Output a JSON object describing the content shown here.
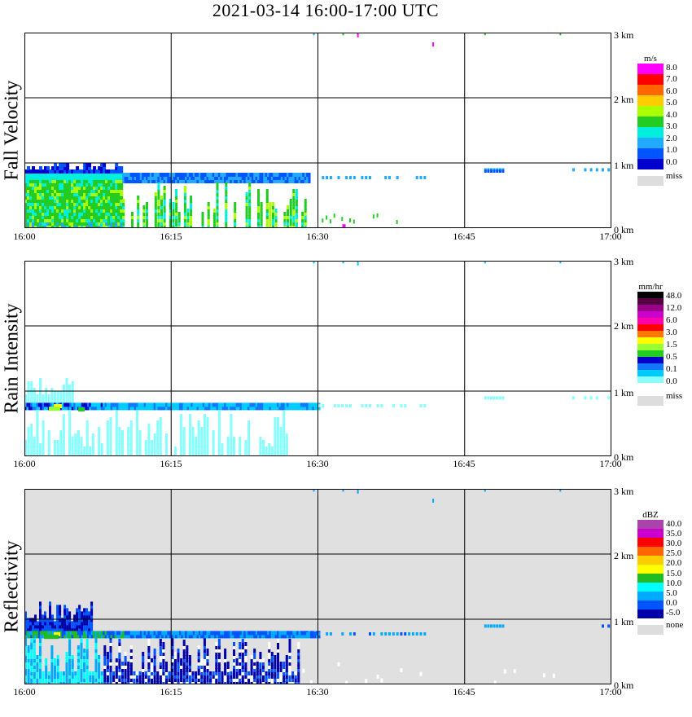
{
  "title": "2021-03-14   16:00-17:00 UTC",
  "x_ticks": [
    "16:00",
    "16:15",
    "16:30",
    "16:45",
    "17:00"
  ],
  "height_ticks": [
    "0 km",
    "1 km",
    "2 km",
    "3 km"
  ],
  "panels": [
    {
      "label": "Fall Velocity",
      "unit": "m/s",
      "missing_label": "miss",
      "background": "#ffffff",
      "legend_ticks": [
        "8.0",
        "7.0",
        "6.0",
        "5.0",
        "4.0",
        "3.0",
        "2.0",
        "1.0",
        "0.0"
      ],
      "legend_colors": [
        "#ff00ff",
        "#ff0000",
        "#ff6600",
        "#ffcc00",
        "#aaff00",
        "#22cc22",
        "#00eedd",
        "#22aaff",
        "#0055ff",
        "#0000cc"
      ]
    },
    {
      "label": "Rain Intensity",
      "unit": "mm/hr",
      "missing_label": "miss",
      "background": "#ffffff",
      "legend_ticks": [
        "48.0",
        "12.0",
        "6.0",
        "3.0",
        "1.5",
        "0.5",
        "0.1",
        "0.0"
      ],
      "legend_colors": [
        "#000000",
        "#550044",
        "#990088",
        "#cc00cc",
        "#ff00aa",
        "#ff0000",
        "#ff7700",
        "#ffff00",
        "#99ff33",
        "#22cc22",
        "#0000cc",
        "#1177ff",
        "#00ccff",
        "#88ffff",
        "#ffffff"
      ]
    },
    {
      "label": "Reflectivity",
      "unit": "dBZ",
      "missing_label": "none",
      "background": "#e0e0e0",
      "legend_ticks": [
        "40.0",
        "35.0",
        "30.0",
        "25.0",
        "20.0",
        "15.0",
        "10.0",
        "5.0",
        "0.0",
        "-5.0"
      ],
      "legend_colors": [
        "#aa44aa",
        "#cc00cc",
        "#ff0000",
        "#ff6600",
        "#ffcc00",
        "#ffff00",
        "#22bb22",
        "#00ffff",
        "#00aaff",
        "#0055ff",
        "#0000aa"
      ]
    }
  ],
  "chart_data": [
    {
      "type": "heatmap",
      "title": "Fall Velocity",
      "unit": "m/s",
      "xlim": [
        "16:00",
        "17:00"
      ],
      "ylim_km": [
        0,
        3.0
      ],
      "grid": true,
      "features": [
        {
          "desc": "precip layer",
          "x": [
            "16:00",
            "16:10"
          ],
          "y_km": [
            0.0,
            1.0
          ],
          "value_range": [
            1.0,
            4.5
          ]
        },
        {
          "desc": "melting layer band",
          "x": [
            "16:00",
            "16:30"
          ],
          "y_km": [
            0.7,
            0.85
          ],
          "value_range": [
            0.5,
            1.5
          ]
        },
        {
          "desc": "streaks",
          "x": [
            "16:14",
            "16:28"
          ],
          "y_km": [
            0.0,
            0.6
          ],
          "value_range": [
            2.0,
            4.0
          ]
        }
      ]
    },
    {
      "type": "heatmap",
      "title": "Rain Intensity",
      "unit": "mm/hr",
      "xlim": [
        "16:00",
        "17:00"
      ],
      "ylim_km": [
        0,
        3.0
      ],
      "grid": true,
      "features": [
        {
          "desc": "bright band",
          "x": [
            "16:00",
            "16:30"
          ],
          "y_km": [
            0.7,
            0.8
          ],
          "value_range": [
            0.5,
            3.0
          ]
        },
        {
          "desc": "light rain below",
          "x": [
            "16:00",
            "16:27"
          ],
          "y_km": [
            0.0,
            0.7
          ],
          "value_range": [
            0.0,
            0.1
          ]
        }
      ]
    },
    {
      "type": "heatmap",
      "title": "Reflectivity",
      "unit": "dBZ",
      "xlim": [
        "16:00",
        "17:00"
      ],
      "ylim_km": [
        0,
        3.0
      ],
      "grid": true,
      "features": [
        {
          "desc": "bright band",
          "x": [
            "16:00",
            "16:30"
          ],
          "y_km": [
            0.7,
            0.85
          ],
          "value_range": [
            5.0,
            20.0
          ]
        },
        {
          "desc": "rain column",
          "x": [
            "16:00",
            "16:28"
          ],
          "y_km": [
            0.0,
            0.7
          ],
          "value_range": [
            -5.0,
            10.0
          ]
        }
      ]
    }
  ]
}
